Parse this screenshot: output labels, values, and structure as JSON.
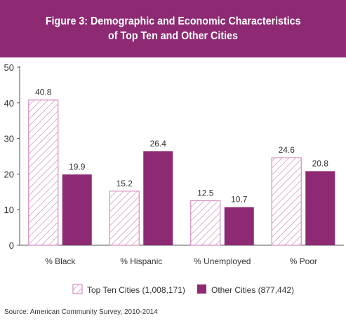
{
  "colors": {
    "banner": "#8d2a73",
    "top_ten_stroke": "#d48cc0",
    "other_fill": "#8d2a73",
    "axis": "#555555",
    "text": "#333333"
  },
  "chart_data": {
    "type": "bar",
    "title": "Figure 3: Demographic and Economic Characteristics",
    "subtitle": "of Top Ten and Other Cities",
    "categories": [
      "% Black",
      "% Hispanic",
      "% Unemployed",
      "% Poor"
    ],
    "series": [
      {
        "name": "Top Ten Cities (1,008,171)",
        "values": [
          40.8,
          15.2,
          12.5,
          24.6
        ],
        "style": "hatched"
      },
      {
        "name": "Other Cities (877,442)",
        "values": [
          19.9,
          26.4,
          10.7,
          20.8
        ],
        "style": "solid"
      }
    ],
    "ylim": [
      0,
      50
    ],
    "yticks": [
      0,
      10,
      20,
      30,
      40,
      50
    ],
    "xlabel": "",
    "ylabel": "",
    "grid": false,
    "legend_position": "bottom"
  },
  "source": "Source: American Community Survey, 2010-2014"
}
